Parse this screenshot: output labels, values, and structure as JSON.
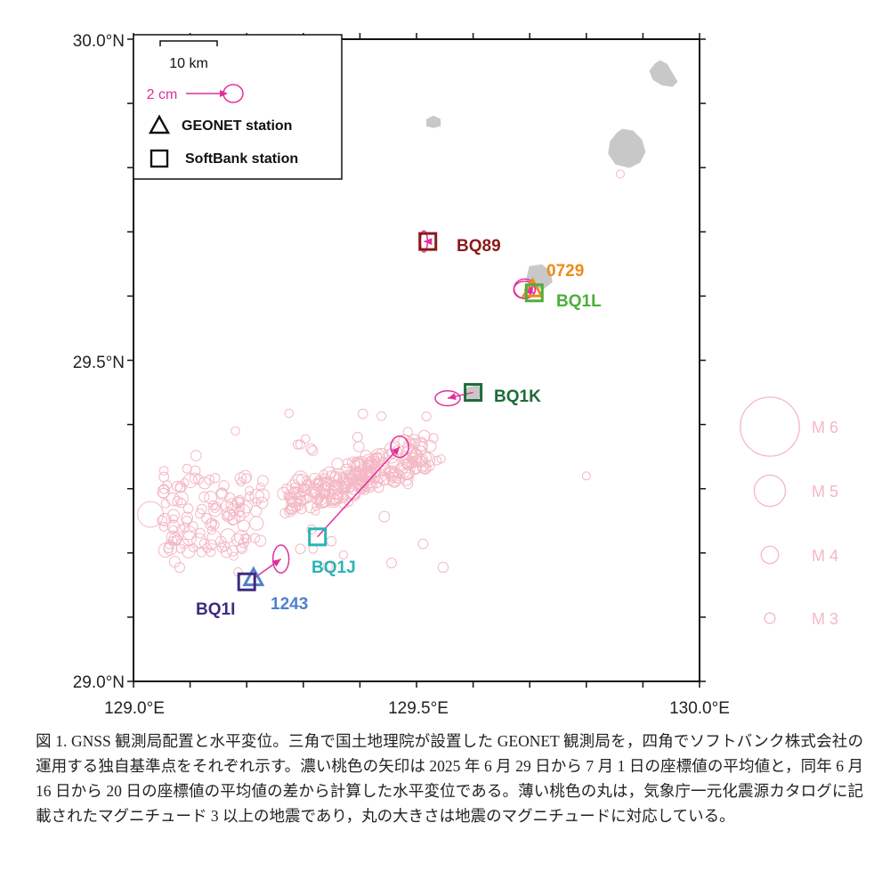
{
  "map": {
    "lon_range": [
      129.0,
      130.0
    ],
    "lat_range": [
      29.0,
      30.0
    ],
    "lon_ticks": [
      {
        "value": 129.0,
        "label": "129.0°E"
      },
      {
        "value": 129.5,
        "label": "129.5°E"
      },
      {
        "value": 130.0,
        "label": "130.0°E"
      }
    ],
    "lat_ticks": [
      {
        "value": 30.0,
        "label": "30.0°N"
      },
      {
        "value": 29.5,
        "label": "29.5°N"
      },
      {
        "value": 29.0,
        "label": "29.0°N"
      }
    ],
    "islands": [
      {
        "name": "island-east-north",
        "lon": 129.93,
        "lat": 29.945
      },
      {
        "name": "island-west-small",
        "lon": 129.53,
        "lat": 29.87
      },
      {
        "name": "island-east-large",
        "lon": 129.87,
        "lat": 29.83
      },
      {
        "name": "island-kodakara",
        "lon": 129.715,
        "lat": 29.63
      },
      {
        "name": "island-bq1k",
        "lon": 129.6,
        "lat": 29.45
      }
    ]
  },
  "legend": {
    "scale_label": "10 km",
    "arrow_label": "2 cm",
    "geonet_label": "GEONET station",
    "softbank_label": "SoftBank station"
  },
  "stations": [
    {
      "id": "BQ89",
      "label": "BQ89",
      "type": "softbank",
      "color": "#8b1a1a",
      "lon": 129.52,
      "lat": 29.685,
      "dx": -0.2,
      "dy": 0.0,
      "ellipse": [
        0.4,
        1.0
      ],
      "label_side": "right"
    },
    {
      "id": "0729",
      "label": "0729",
      "type": "geonet",
      "color": "#f08a1c",
      "lon": 129.705,
      "lat": 29.61,
      "dx": -0.4,
      "dy": 0.05,
      "ellipse": [
        1.2,
        0.9
      ],
      "label_side": "above-right"
    },
    {
      "id": "BQ1L",
      "label": "BQ1L",
      "type": "softbank",
      "color": "#4caf3a",
      "lon": 129.708,
      "lat": 29.605,
      "dx": -0.5,
      "dy": 0.15,
      "ellipse": [
        1.2,
        0.8
      ],
      "label_side": "below-right"
    },
    {
      "id": "BQ1K",
      "label": "BQ1K",
      "type": "softbank",
      "color": "#1e6b3a",
      "lon": 129.6,
      "lat": 29.45,
      "dx": -1.3,
      "dy": -0.3,
      "ellipse": [
        1.4,
        0.7
      ],
      "label_side": "right"
    },
    {
      "id": "BQ1J",
      "label": "BQ1J",
      "type": "softbank",
      "color": "#2bb3b3",
      "lon": 129.325,
      "lat": 29.225,
      "dx": 4.2,
      "dy": 4.6,
      "ellipse": [
        1.0,
        1.0
      ],
      "label_side": "below"
    },
    {
      "id": "1243",
      "label": "1243",
      "type": "geonet",
      "color": "#4f7fd0",
      "lon": 129.212,
      "lat": 29.16,
      "dx": 1.4,
      "dy": 1.0,
      "ellipse": [
        0.9,
        1.3
      ],
      "label_side": "below-right"
    },
    {
      "id": "BQ1I",
      "label": "BQ1I",
      "type": "softbank",
      "color": "#3f2a80",
      "lon": 129.2,
      "lat": 29.155,
      "dx": 0.0,
      "dy": 0.0,
      "ellipse": [
        0.0,
        0.0
      ],
      "label_side": "below-left"
    }
  ],
  "magnitude_legend": [
    {
      "label": "M 6",
      "mag": 6
    },
    {
      "label": "M 5",
      "mag": 5
    },
    {
      "label": "M 4",
      "mag": 4
    },
    {
      "label": "M 3",
      "mag": 3
    }
  ],
  "colors": {
    "vector": "#e0309a",
    "quake": "#f4b8c4",
    "island": "#c8c8c8"
  },
  "caption": "図 1. GNSS 観測局配置と水平変位。三角で国土地理院が設置した GEONET 観測局を，四角でソフトバンク株式会社の運用する独自基準点をそれぞれ示す。濃い桃色の矢印は 2025 年 6 月 29 日から 7 月 1 日の座標値の平均値と，同年 6 月 16 日から 20 日の座標値の平均値の差から計算した水平変位である。薄い桃色の丸は，気象庁一元化震源カタログに記載されたマグニチュード 3 以上の地震であり，丸の大きさは地震のマグニチュードに対応している。"
}
